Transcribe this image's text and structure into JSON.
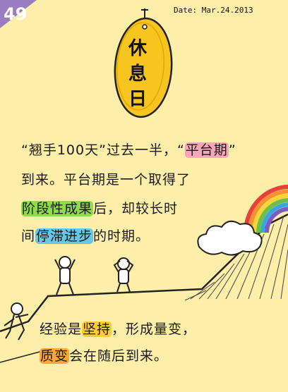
{
  "corner_badge": {
    "number": "49",
    "color": "#9a7cc0"
  },
  "date_text": "Date: Mar.24.2013",
  "sign": {
    "chars": [
      "休",
      "息",
      "日"
    ],
    "color": "#f6c520"
  },
  "paragraph1": {
    "line1": {
      "before": "“翘手100天”过去一半，“",
      "highlight": "平台期",
      "after": "”"
    },
    "line2": "到来。平台期是一个取得了",
    "line3": {
      "highlight": "阶段性成果",
      "after": "后，却较长时"
    },
    "line4": {
      "before": "间",
      "highlight": "停滞进步",
      "after": "的时期。"
    }
  },
  "paragraph2": {
    "line1": {
      "before": "经验是",
      "highlight": "坚持",
      "after": "，形成量变，"
    },
    "line2": {
      "highlight": "质变",
      "after": "会在随后到来。"
    }
  },
  "highlight_colors": {
    "pink": "#f6a6b8",
    "green": "#8fdc4a",
    "blue": "#63c9ea",
    "yellow": "#ffcc33",
    "orange": "#ffa53a"
  },
  "rainbow_colors": [
    "#e8403a",
    "#f5922f",
    "#f7d43a",
    "#6cc04a",
    "#3aa6e0",
    "#7a5cc2"
  ]
}
